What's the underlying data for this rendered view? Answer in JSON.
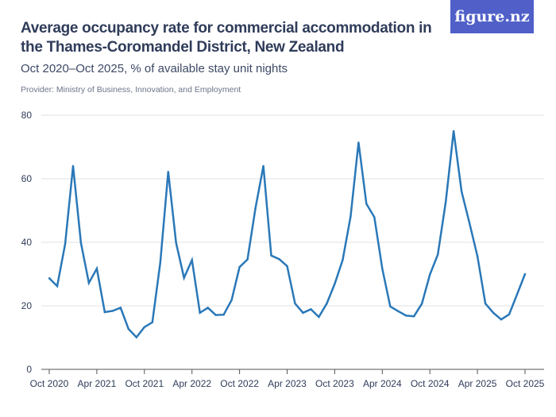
{
  "title": "Average occupancy rate for commercial accommodation in the Thames-Coromandel District, New Zealand",
  "subtitle": "Oct 2020–Oct 2025, % of available stay unit nights",
  "provider": "Provider: Ministry of Business, Innovation, and Employment",
  "logo": "figure.nz",
  "colors": {
    "line": "#2a78b8",
    "logo_bg": "#5060c8",
    "text": "#2f3c5a"
  },
  "chart_data": {
    "type": "line",
    "title": "Average occupancy rate for commercial accommodation in the Thames-Coromandel District, New Zealand",
    "ylim": [
      0,
      80
    ],
    "y_ticks": [
      "0",
      "20",
      "40",
      "60",
      "80"
    ],
    "x_ticks": [
      "Oct 2020",
      "Apr 2021",
      "Oct 2021",
      "Apr 2022",
      "Oct 2022",
      "Apr 2023",
      "Oct 2023",
      "Apr 2024",
      "Oct 2024",
      "Apr 2025",
      "Oct 2025"
    ],
    "x_start": "2020-10",
    "x_end": "2025-10",
    "grid": true,
    "values": [
      28.7,
      26.2,
      39.4,
      64,
      39.8,
      27.2,
      31.7,
      18,
      18.4,
      19.4,
      12.7,
      10.1,
      13.3,
      14.8,
      33.6,
      62.2,
      39.8,
      28.8,
      34.4,
      17.8,
      19.4,
      17.1,
      17.2,
      21.8,
      32.2,
      34.6,
      50.7,
      64,
      35.8,
      34.7,
      32.5,
      20.7,
      17.8,
      18.9,
      16.5,
      20.7,
      26.9,
      34.4,
      48.1,
      71.4,
      52.1,
      47.9,
      31.7,
      19.8,
      18.3,
      16.9,
      16.7,
      20.7,
      29.8,
      36.1,
      52.7,
      75,
      56,
      46,
      35.6,
      20.7,
      17.8,
      15.7,
      17.3,
      23.6,
      30
    ]
  }
}
